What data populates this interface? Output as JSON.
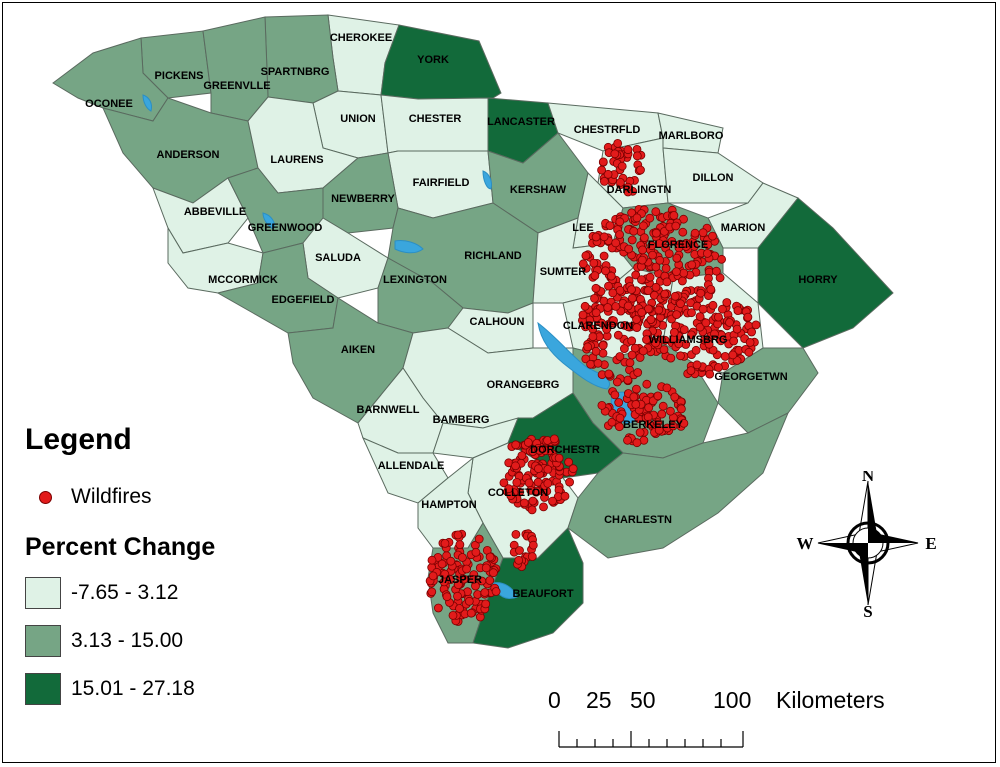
{
  "legend": {
    "title": "Legend",
    "wildfire_label": "Wildfires",
    "wildfire_color": "#e21b1b",
    "percent_change_title": "Percent Change",
    "classes": [
      {
        "label": "-7.65 - 3.12",
        "color": "#dff2e6"
      },
      {
        "label": "3.13 - 15.00",
        "color": "#76a585"
      },
      {
        "label": "15.01 - 27.18",
        "color": "#126a3a"
      }
    ]
  },
  "scale_bar": {
    "ticks": [
      "0",
      "25",
      "50",
      "100"
    ],
    "unit": "Kilometers"
  },
  "north_arrow": {
    "n": "N",
    "s": "S",
    "e": "E",
    "w": "W"
  },
  "counties": [
    {
      "name": "CHEROKEE",
      "class": 0
    },
    {
      "name": "YORK",
      "class": 2
    },
    {
      "name": "PICKENS",
      "class": 1
    },
    {
      "name": "SPARTNBRG",
      "class": 1
    },
    {
      "name": "GREENVLLE",
      "class": 1
    },
    {
      "name": "OCONEE",
      "class": 1
    },
    {
      "name": "UNION",
      "class": 0
    },
    {
      "name": "CHESTER",
      "class": 0
    },
    {
      "name": "LANCASTER",
      "class": 2
    },
    {
      "name": "CHESTRFLD",
      "class": 0
    },
    {
      "name": "MARLBORO",
      "class": 0
    },
    {
      "name": "ANDERSON",
      "class": 1
    },
    {
      "name": "LAURENS",
      "class": 0
    },
    {
      "name": "FAIRFIELD",
      "class": 0
    },
    {
      "name": "DARLINGTN",
      "class": 0
    },
    {
      "name": "DILLON",
      "class": 0
    },
    {
      "name": "KERSHAW",
      "class": 1
    },
    {
      "name": "NEWBERRY",
      "class": 1
    },
    {
      "name": "ABBEVILLE",
      "class": 0
    },
    {
      "name": "GREENWOOD",
      "class": 1
    },
    {
      "name": "MARION",
      "class": 0
    },
    {
      "name": "LEE",
      "class": 0
    },
    {
      "name": "FLORENCE",
      "class": 1
    },
    {
      "name": "SALUDA",
      "class": 0
    },
    {
      "name": "RICHLAND",
      "class": 1
    },
    {
      "name": "HORRY",
      "class": 2
    },
    {
      "name": "SUMTER",
      "class": 0
    },
    {
      "name": "MCCORMICK",
      "class": 0
    },
    {
      "name": "LEXINGTON",
      "class": 1
    },
    {
      "name": "EDGEFIELD",
      "class": 1
    },
    {
      "name": "CALHOUN",
      "class": 0
    },
    {
      "name": "CLARENDON",
      "class": 0
    },
    {
      "name": "WILLIAMSBRG",
      "class": 0
    },
    {
      "name": "AIKEN",
      "class": 1
    },
    {
      "name": "ORANGEBRG",
      "class": 0
    },
    {
      "name": "GEORGETWN",
      "class": 1
    },
    {
      "name": "BARNWELL",
      "class": 0
    },
    {
      "name": "BAMBERG",
      "class": 0
    },
    {
      "name": "BERKELEY",
      "class": 1
    },
    {
      "name": "DORCHESTR",
      "class": 2
    },
    {
      "name": "ALLENDALE",
      "class": 0
    },
    {
      "name": "COLLETON",
      "class": 0
    },
    {
      "name": "HAMPTON",
      "class": 0
    },
    {
      "name": "CHARLESTN",
      "class": 1
    },
    {
      "name": "JASPER",
      "class": 1
    },
    {
      "name": "BEAUFORT",
      "class": 2
    }
  ]
}
